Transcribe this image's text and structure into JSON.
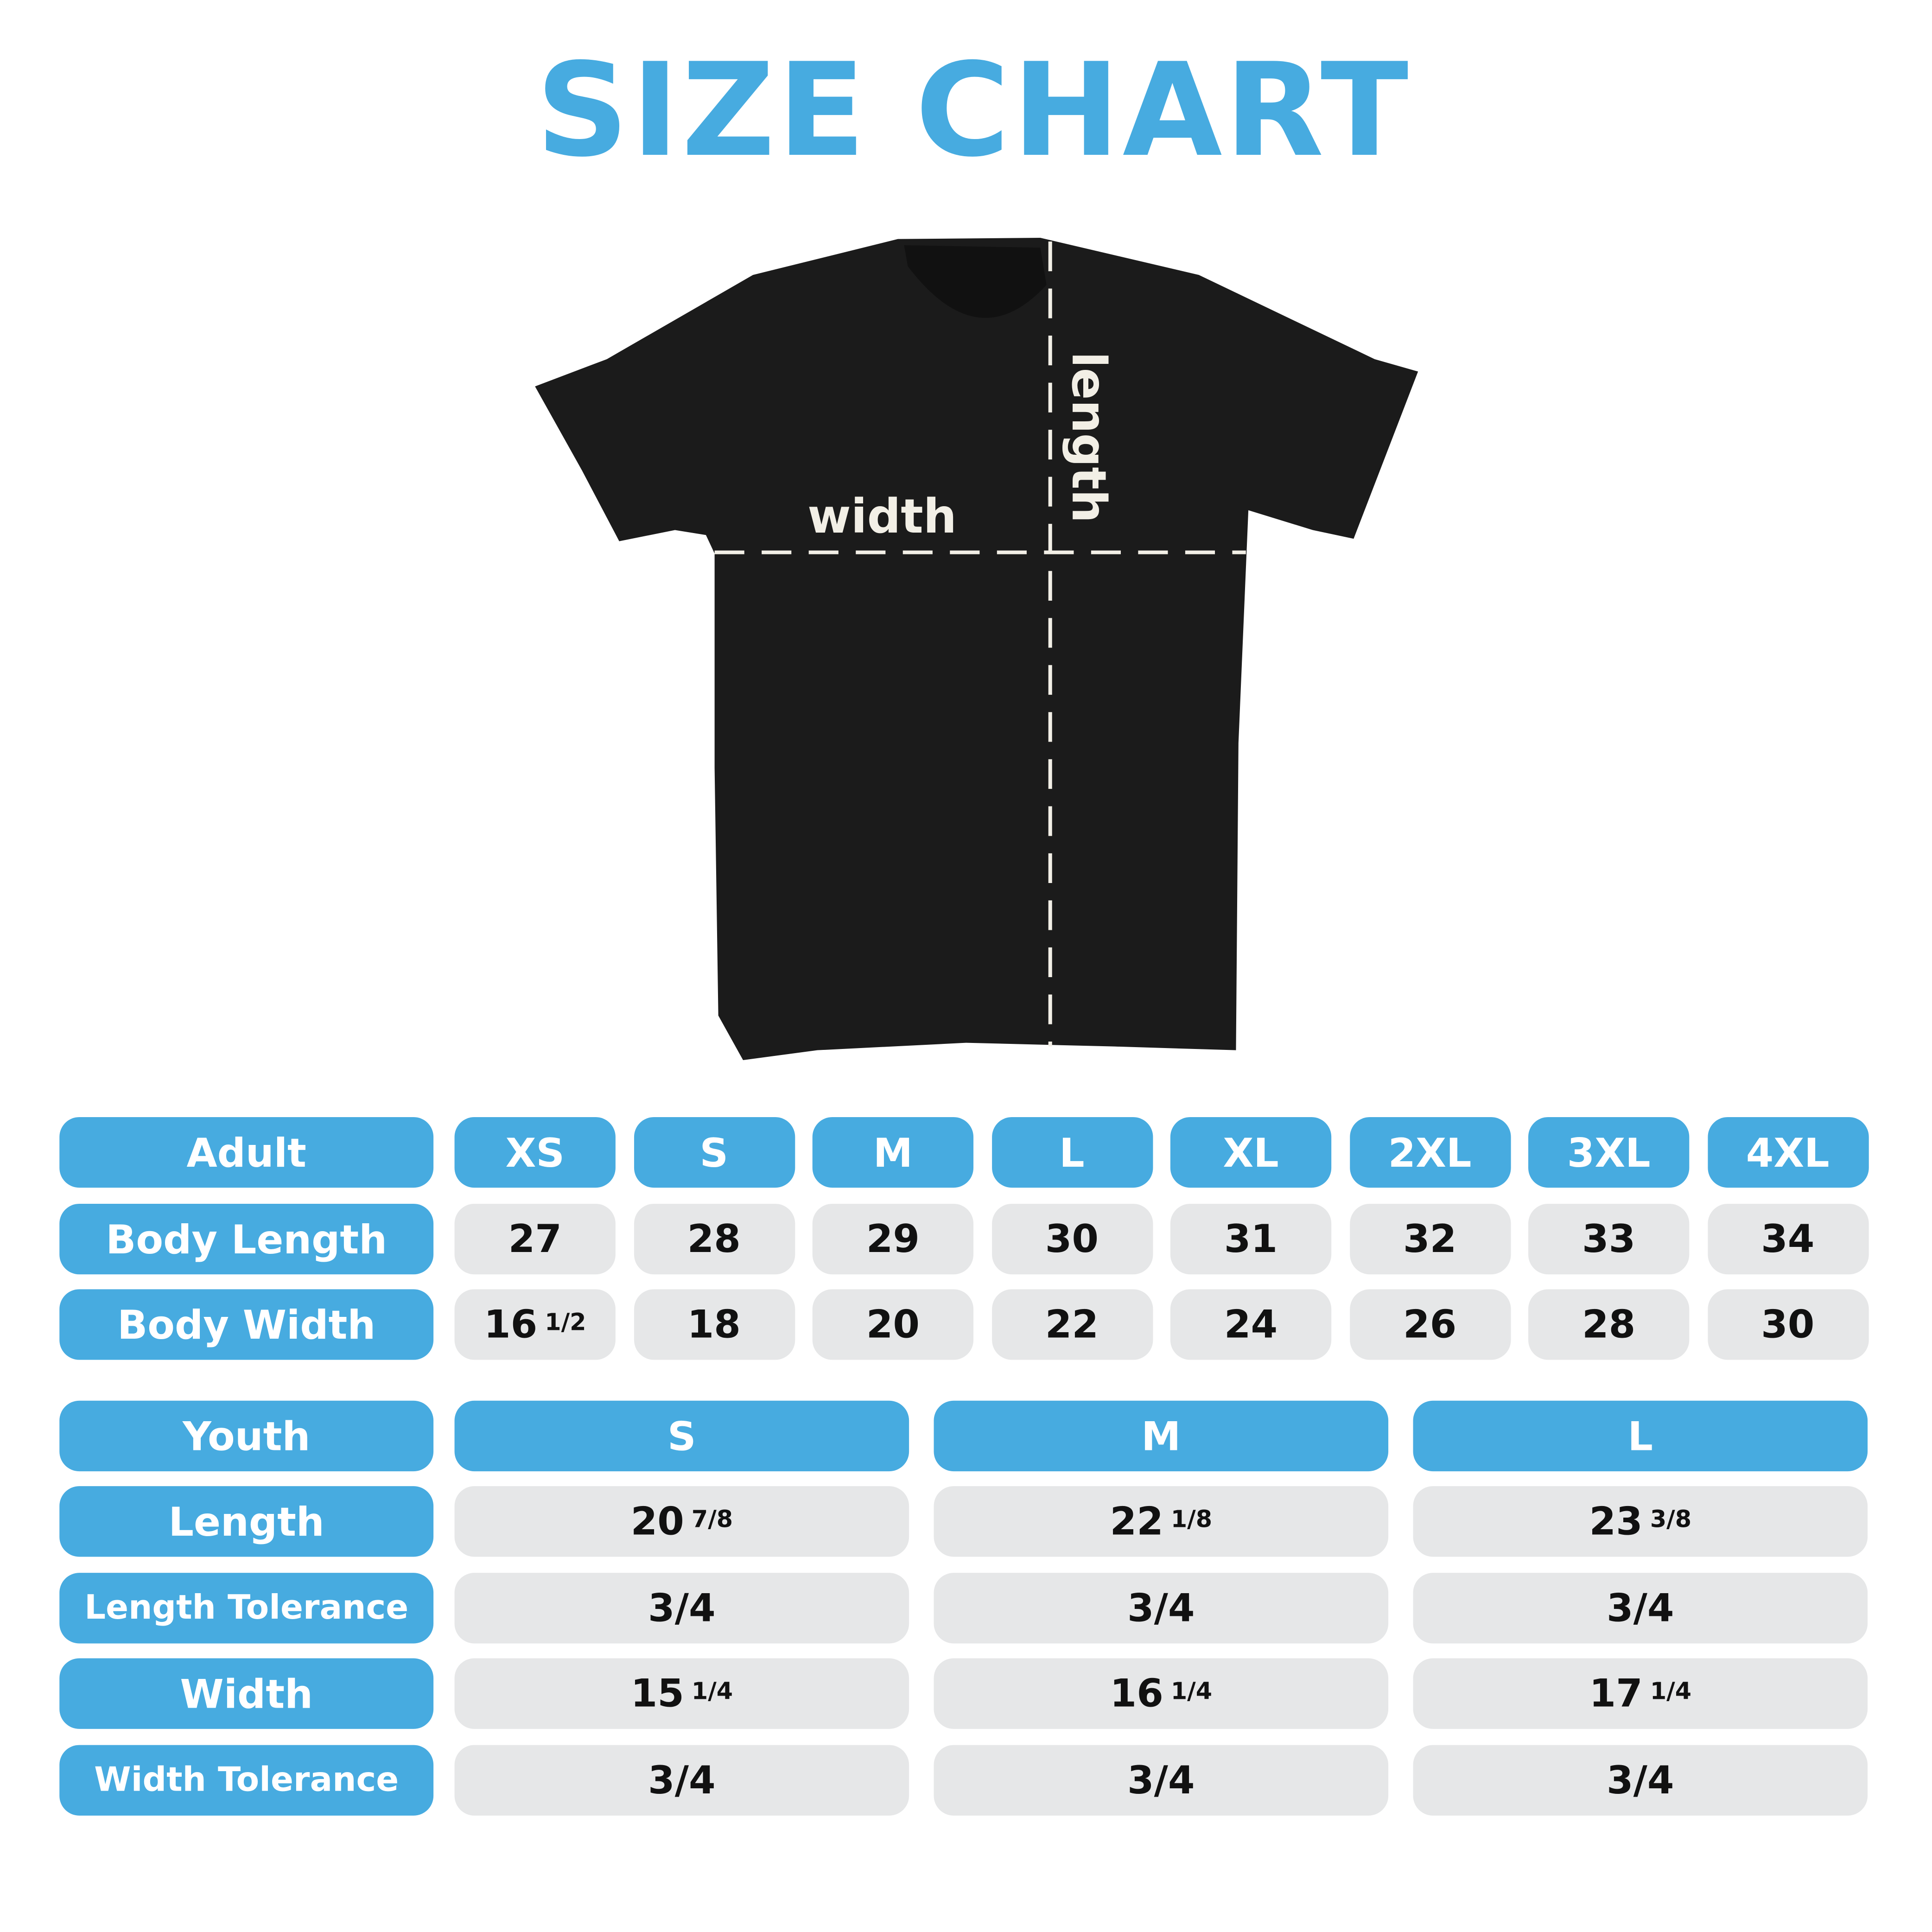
{
  "title": "SIZE CHART",
  "colors": {
    "accent": "#47abe0",
    "cell": "#e6e7e8",
    "shirt": "#1b1b1b"
  },
  "diagram": {
    "width_label": "width",
    "length_label": "length"
  },
  "adult": {
    "header": "Adult",
    "sizes": [
      "XS",
      "S",
      "M",
      "L",
      "XL",
      "2XL",
      "3XL",
      "4XL"
    ],
    "rows": [
      {
        "label": "Body Length",
        "values": [
          {
            "whole": "27",
            "frac": ""
          },
          {
            "whole": "28",
            "frac": ""
          },
          {
            "whole": "29",
            "frac": ""
          },
          {
            "whole": "30",
            "frac": ""
          },
          {
            "whole": "31",
            "frac": ""
          },
          {
            "whole": "32",
            "frac": ""
          },
          {
            "whole": "33",
            "frac": ""
          },
          {
            "whole": "34",
            "frac": ""
          }
        ]
      },
      {
        "label": "Body Width",
        "values": [
          {
            "whole": "16",
            "frac": "1/2"
          },
          {
            "whole": "18",
            "frac": ""
          },
          {
            "whole": "20",
            "frac": ""
          },
          {
            "whole": "22",
            "frac": ""
          },
          {
            "whole": "24",
            "frac": ""
          },
          {
            "whole": "26",
            "frac": ""
          },
          {
            "whole": "28",
            "frac": ""
          },
          {
            "whole": "30",
            "frac": ""
          }
        ]
      }
    ]
  },
  "youth": {
    "header": "Youth",
    "sizes": [
      "S",
      "M",
      "L"
    ],
    "rows": [
      {
        "label": "Length",
        "values": [
          {
            "whole": "20",
            "frac": "7/8"
          },
          {
            "whole": "22",
            "frac": "1/8"
          },
          {
            "whole": "23",
            "frac": "3/8"
          }
        ]
      },
      {
        "label": "Length Tolerance",
        "values": [
          {
            "whole": "3/4",
            "frac": ""
          },
          {
            "whole": "3/4",
            "frac": ""
          },
          {
            "whole": "3/4",
            "frac": ""
          }
        ]
      },
      {
        "label": "Width",
        "values": [
          {
            "whole": "15",
            "frac": "1/4"
          },
          {
            "whole": "16",
            "frac": "1/4"
          },
          {
            "whole": "17",
            "frac": "1/4"
          }
        ]
      },
      {
        "label": "Width Tolerance",
        "values": [
          {
            "whole": "3/4",
            "frac": ""
          },
          {
            "whole": "3/4",
            "frac": ""
          },
          {
            "whole": "3/4",
            "frac": ""
          }
        ]
      }
    ]
  }
}
